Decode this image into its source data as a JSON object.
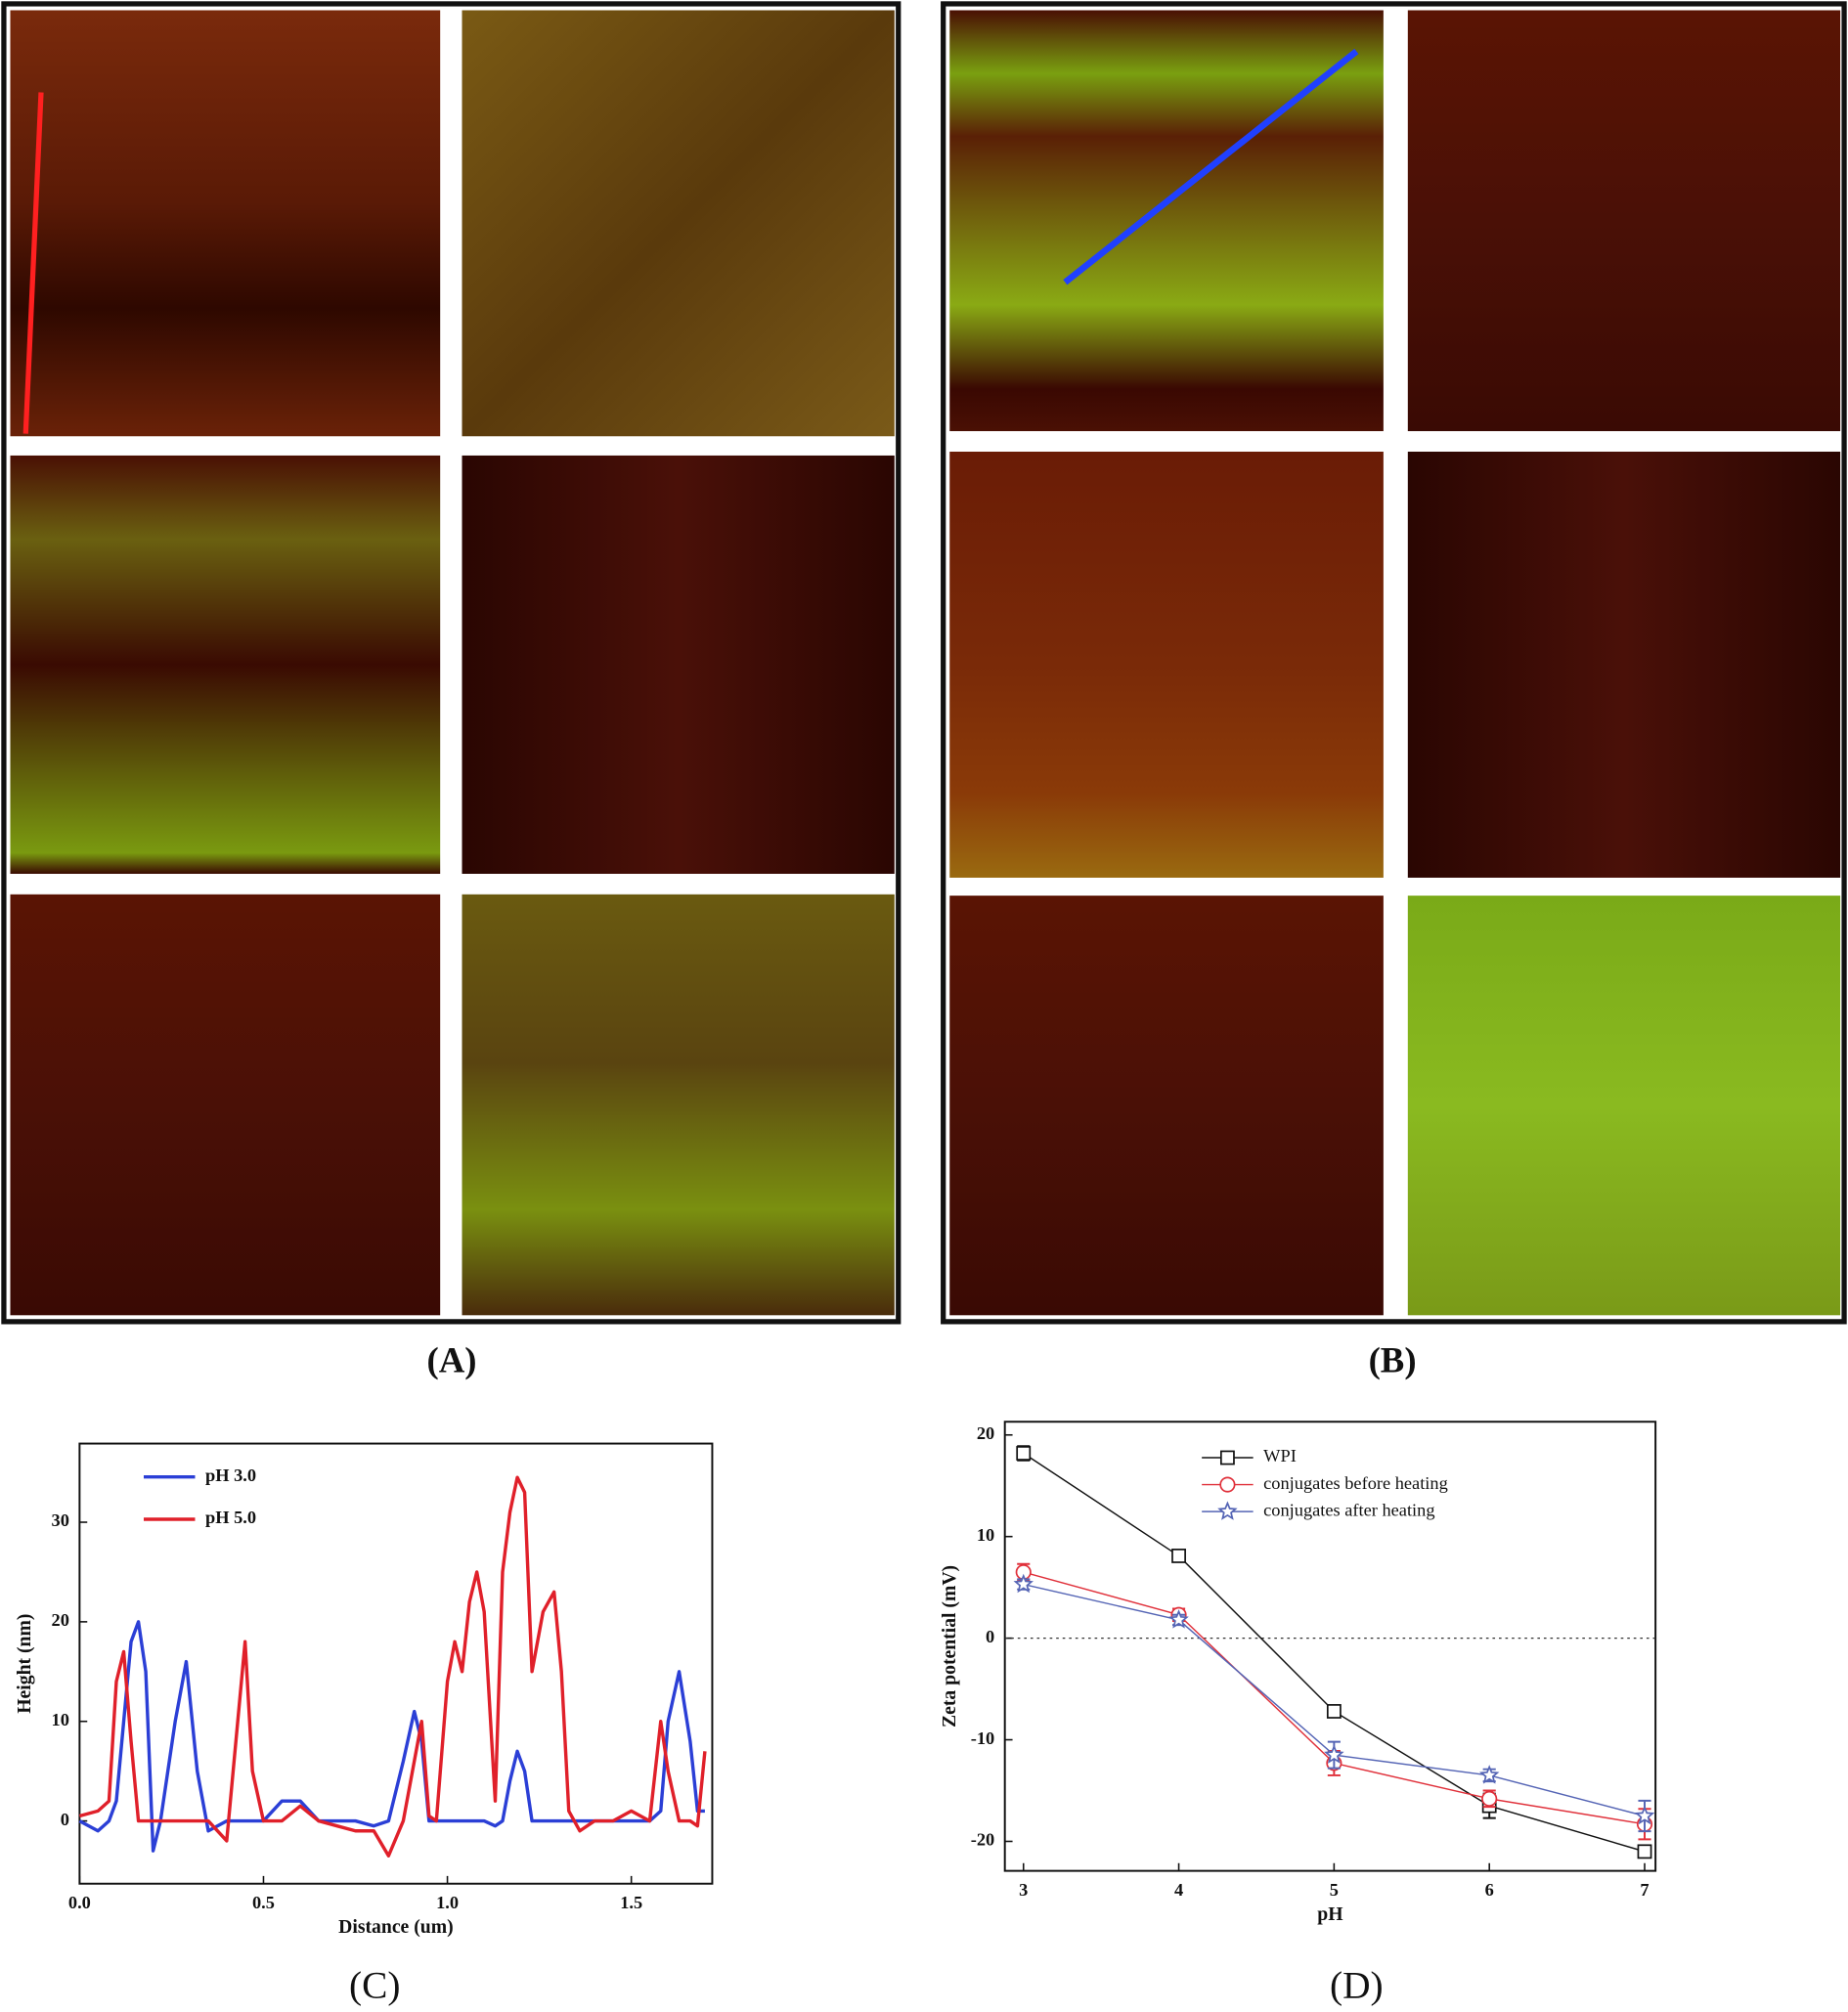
{
  "panel_labels": [
    "(A)",
    "(B)",
    "(C)",
    "(D)"
  ],
  "chart_data": [
    {
      "type": "line",
      "x_label": "Distance (um)",
      "y_label": "Height (nm)",
      "x": [
        0,
        0.05,
        0.08,
        0.1,
        0.12,
        0.14,
        0.16,
        0.18,
        0.2,
        0.22,
        0.26,
        0.29,
        0.32,
        0.35,
        0.4,
        0.43,
        0.45,
        0.47,
        0.5,
        0.55,
        0.6,
        0.65,
        0.7,
        0.75,
        0.8,
        0.84,
        0.88,
        0.91,
        0.93,
        0.95,
        0.97,
        1.0,
        1.02,
        1.04,
        1.06,
        1.08,
        1.1,
        1.13,
        1.15,
        1.17,
        1.19,
        1.21,
        1.23,
        1.26,
        1.29,
        1.31,
        1.33,
        1.36,
        1.4,
        1.45,
        1.5,
        1.55,
        1.58,
        1.6,
        1.63,
        1.66,
        1.68,
        1.7
      ],
      "series": [
        {
          "name": "pH 3.0",
          "color": "#2b3fd6",
          "values": [
            0,
            -1,
            0,
            2,
            10,
            18,
            20,
            15,
            -3,
            0,
            10,
            16,
            5,
            -1,
            0,
            0,
            0,
            0,
            0,
            2,
            2,
            0,
            0,
            0,
            -0.5,
            0,
            6,
            11,
            8,
            0,
            0,
            0,
            0,
            0,
            0,
            0,
            0,
            -0.5,
            0,
            4,
            7,
            5,
            0,
            0,
            0,
            0,
            0,
            0,
            0,
            0,
            0,
            0,
            1,
            10,
            15,
            8,
            1,
            1
          ]
        },
        {
          "name": "pH 5.0",
          "color": "#e0202a",
          "values": [
            0.5,
            1,
            2,
            14,
            17,
            8,
            0,
            0,
            0,
            0,
            0,
            0,
            0,
            0,
            -2,
            10,
            18,
            5,
            0,
            0,
            1.5,
            0,
            -0.5,
            -1,
            -1,
            -3.5,
            0,
            6,
            10,
            0.5,
            0,
            14,
            18,
            15,
            22,
            25,
            21,
            2,
            25,
            31,
            34.5,
            33,
            15,
            21,
            23,
            15,
            1,
            -1,
            0,
            0,
            1,
            0,
            10,
            5,
            0,
            0,
            -0.5,
            7
          ]
        }
      ],
      "xlim": [
        0,
        1.72
      ],
      "ylim": [
        -6.3,
        37.9
      ],
      "xticks": [
        {
          "value": 0,
          "label": "0.0"
        },
        0.5,
        {
          "value": 1,
          "label": "1.0"
        },
        1.5
      ],
      "yticks": [
        0,
        10,
        20,
        30
      ],
      "legend": "upper left"
    },
    {
      "type": "line",
      "x_label": "pH",
      "y_label": "Zeta potential (mV)",
      "x": [
        3,
        4,
        5,
        6,
        7
      ],
      "series": [
        {
          "name": "WPI",
          "color": "#111111",
          "marker": "square",
          "values": [
            18.2,
            8.1,
            -7.2,
            -16.5,
            -21
          ],
          "errors": [
            0.7,
            0.3,
            0.3,
            1.2,
            0.5
          ]
        },
        {
          "name": "conjugates before heating",
          "color": "#e0303a",
          "marker": "circle",
          "values": [
            6.5,
            2.3,
            -12.3,
            -15.8,
            -18.3
          ],
          "errors": [
            0.8,
            0.6,
            1.2,
            0.8,
            1.5
          ]
        },
        {
          "name": "conjugates after heating",
          "color": "#5565b5",
          "marker": "star",
          "values": [
            5.3,
            1.8,
            -11.5,
            -13.5,
            -17.5
          ],
          "errors": [
            0.5,
            0.5,
            1.3,
            0.6,
            1.5
          ]
        }
      ],
      "hline": 0,
      "xlim": [
        2.88,
        7.07
      ],
      "ylim": [
        -22.9,
        21.3
      ],
      "xticks": [
        3,
        4,
        5,
        6,
        7
      ],
      "yticks": [
        -20,
        -10,
        0,
        10,
        20
      ],
      "legend": "upper center"
    }
  ]
}
